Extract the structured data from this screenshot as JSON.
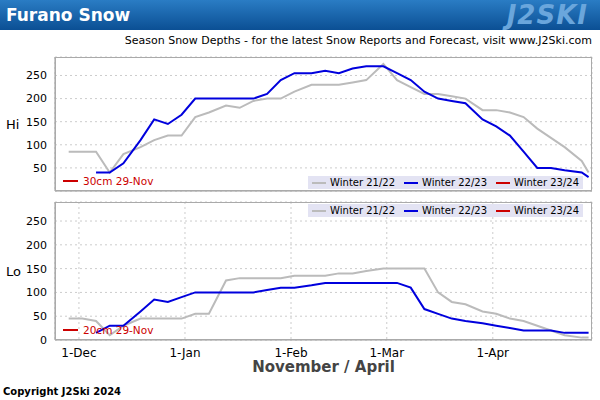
{
  "title": "Furano Snow",
  "logo": "J2SKI",
  "subtitle": "Season Snow Depths - for the latest Snow Reports and Forecast, visit www.J2Ski.com",
  "footer": "Copyright J2Ski 2024",
  "chart_data": [
    {
      "type": "line",
      "y_label": "Hi",
      "x": [
        27,
        31,
        35,
        39,
        43,
        48,
        52,
        56,
        60,
        64,
        68,
        73,
        77,
        81,
        85,
        89,
        93,
        98,
        102,
        106,
        110,
        114,
        119,
        123,
        127,
        131,
        135,
        139,
        143,
        148,
        152,
        156,
        160,
        164,
        168,
        172,
        177,
        179
      ],
      "xlim": [
        23,
        180
      ],
      "xticks": [
        30,
        61,
        92,
        120,
        151
      ],
      "ylim": [
        0,
        290
      ],
      "yticks": [
        50,
        100,
        150,
        200,
        250
      ],
      "grid": true,
      "legend": "lower right",
      "tick_labels": "y",
      "series": [
        {
          "name": "Winter 21/22",
          "color": "#bbbbbb",
          "values": [
            85,
            85,
            85,
            40,
            80,
            95,
            110,
            120,
            120,
            160,
            170,
            185,
            180,
            195,
            200,
            200,
            215,
            230,
            230,
            230,
            235,
            240,
            275,
            240,
            225,
            210,
            210,
            205,
            200,
            175,
            175,
            170,
            160,
            135,
            115,
            95,
            65,
            40
          ]
        },
        {
          "name": "Winter 22/23",
          "color": "#0000dd",
          "values": [
            null,
            null,
            40,
            40,
            60,
            110,
            155,
            145,
            165,
            200,
            200,
            200,
            200,
            200,
            210,
            240,
            255,
            255,
            260,
            255,
            265,
            270,
            270,
            255,
            240,
            215,
            200,
            195,
            190,
            155,
            140,
            120,
            85,
            50,
            50,
            45,
            40,
            30
          ]
        },
        {
          "name": "Winter 23/24",
          "color": "#cc0000",
          "annotation": "30cm 29-Nov",
          "values": [
            null,
            null,
            null,
            null,
            null,
            null,
            null,
            null,
            null,
            null,
            null,
            null,
            null,
            null,
            null,
            null,
            null,
            null,
            null,
            null,
            null,
            null,
            null,
            null,
            null,
            null,
            null,
            null,
            null,
            null,
            null,
            null,
            null,
            null,
            null,
            null,
            null,
            null
          ]
        }
      ]
    },
    {
      "type": "line",
      "y_label": "Lo",
      "x_label": "November / April",
      "x": [
        27,
        31,
        35,
        39,
        43,
        48,
        52,
        56,
        60,
        64,
        68,
        73,
        77,
        81,
        85,
        89,
        93,
        98,
        102,
        106,
        110,
        114,
        119,
        123,
        127,
        131,
        135,
        139,
        143,
        148,
        152,
        156,
        160,
        164,
        168,
        172,
        177,
        179
      ],
      "xlim": [
        23,
        180
      ],
      "xticks": [
        {
          "value": 30,
          "label": "1-Dec"
        },
        {
          "value": 61,
          "label": "1-Jan"
        },
        {
          "value": 92,
          "label": "1-Feb"
        },
        {
          "value": 120,
          "label": "1-Mar"
        },
        {
          "value": 151,
          "label": "1-Apr"
        }
      ],
      "ylim": [
        0,
        290
      ],
      "yticks": [
        0,
        50,
        100,
        150,
        200,
        250
      ],
      "grid": true,
      "legend": "upper right",
      "series": [
        {
          "name": "Winter 21/22",
          "color": "#bbbbbb",
          "values": [
            45,
            45,
            40,
            10,
            30,
            45,
            45,
            45,
            45,
            55,
            55,
            125,
            130,
            130,
            130,
            130,
            135,
            135,
            135,
            140,
            140,
            145,
            150,
            150,
            150,
            150,
            100,
            80,
            75,
            60,
            55,
            45,
            40,
            30,
            20,
            10,
            5,
            5
          ]
        },
        {
          "name": "Winter 22/23",
          "color": "#0000dd",
          "values": [
            null,
            null,
            15,
            30,
            30,
            60,
            85,
            80,
            90,
            100,
            100,
            100,
            100,
            100,
            105,
            110,
            110,
            115,
            120,
            120,
            120,
            120,
            120,
            120,
            110,
            65,
            55,
            45,
            40,
            35,
            30,
            25,
            20,
            20,
            20,
            15,
            15,
            15
          ]
        },
        {
          "name": "Winter 23/24",
          "color": "#cc0000",
          "annotation": "20cm 29-Nov",
          "values": [
            null,
            null,
            null,
            null,
            null,
            null,
            null,
            null,
            null,
            null,
            null,
            null,
            null,
            null,
            null,
            null,
            null,
            null,
            null,
            null,
            null,
            null,
            null,
            null,
            null,
            null,
            null,
            null,
            null,
            null,
            null,
            null,
            null,
            null,
            null,
            null,
            null,
            null
          ]
        }
      ]
    }
  ]
}
